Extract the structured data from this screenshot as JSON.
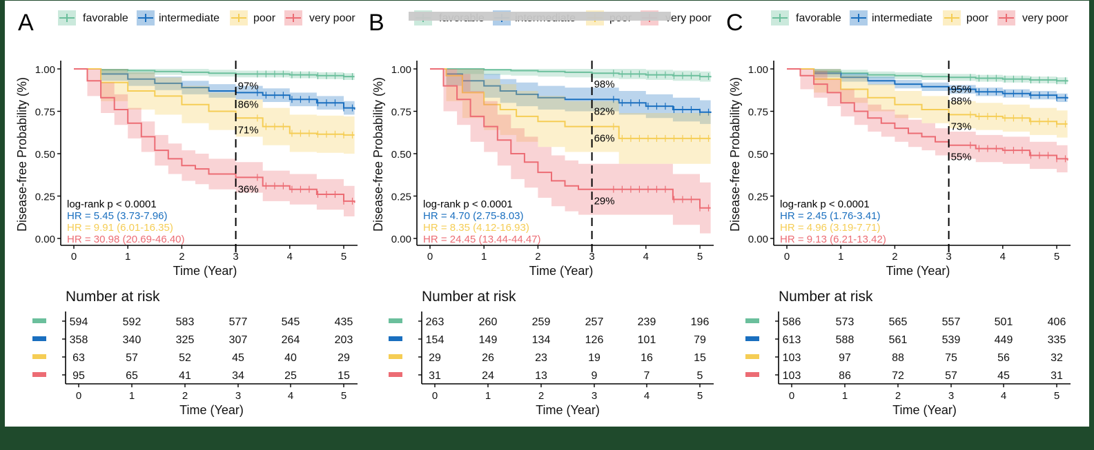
{
  "colors": {
    "favorable": "#6bbf9c",
    "intermediate": "#1a6fbf",
    "poor": "#f5cd55",
    "very_poor": "#ec6c74",
    "axis": "#000000",
    "banner": "#c9c9c9"
  },
  "chart_data": [
    {
      "panel": "A",
      "type": "line",
      "subtype": "kaplan-meier",
      "xlabel": "Time (Year)",
      "ylabel": "Disease-free Probability (%)",
      "xlim": [
        0,
        5.2
      ],
      "ylim": [
        0,
        1
      ],
      "xticks": [
        "0",
        "1",
        "2",
        "3",
        "4",
        "5"
      ],
      "yticks": [
        "0.00",
        "0.25",
        "0.50",
        "0.75",
        "1.00"
      ],
      "legend": [
        "favorable",
        "intermediate",
        "poor",
        "very poor"
      ],
      "pvalue": "log-rank p < 0.0001",
      "hr": [
        "HR = 5.45 (3.73-7.96)",
        "HR = 9.91 (6.01-16.35)",
        "HR = 30.98 (20.69-46.40)"
      ],
      "cutoff_year": 3,
      "annotations": [
        "97%",
        "86%",
        "71%",
        "36%"
      ],
      "annot_values": [
        0.97,
        0.86,
        0.71,
        0.36
      ],
      "series": [
        {
          "name": "favorable",
          "x": [
            0,
            0.5,
            1,
            1.5,
            2,
            2.5,
            3,
            3.5,
            4,
            4.5,
            5,
            5.2
          ],
          "y": [
            1,
            0.995,
            0.99,
            0.985,
            0.98,
            0.975,
            0.97,
            0.97,
            0.965,
            0.96,
            0.955,
            0.955
          ],
          "ci": 0.02
        },
        {
          "name": "intermediate",
          "x": [
            0,
            0.5,
            1,
            1.5,
            2,
            2.5,
            3,
            3.5,
            4,
            4.5,
            5,
            5.2
          ],
          "y": [
            1,
            0.97,
            0.94,
            0.915,
            0.89,
            0.87,
            0.86,
            0.845,
            0.82,
            0.8,
            0.77,
            0.76
          ],
          "ci": 0.04
        },
        {
          "name": "poor",
          "x": [
            0,
            0.5,
            1,
            1.5,
            2,
            2.5,
            3,
            3.5,
            4,
            4.5,
            5,
            5.2
          ],
          "y": [
            1,
            0.92,
            0.87,
            0.84,
            0.79,
            0.75,
            0.71,
            0.66,
            0.62,
            0.615,
            0.61,
            0.61
          ],
          "ci": 0.11
        },
        {
          "name": "very poor",
          "x": [
            0,
            0.25,
            0.5,
            0.75,
            1,
            1.25,
            1.5,
            1.75,
            2,
            2.25,
            2.5,
            3,
            3.5,
            4,
            4.5,
            5,
            5.2
          ],
          "y": [
            1,
            0.93,
            0.83,
            0.76,
            0.68,
            0.6,
            0.52,
            0.47,
            0.43,
            0.41,
            0.38,
            0.36,
            0.31,
            0.29,
            0.26,
            0.22,
            0.21
          ],
          "ci": 0.09
        }
      ],
      "risk_title": "Number at risk",
      "risk_rows": [
        [
          "594",
          "592",
          "583",
          "577",
          "545",
          "435"
        ],
        [
          "358",
          "340",
          "325",
          "307",
          "264",
          "203"
        ],
        [
          "63",
          "57",
          "52",
          "45",
          "40",
          "29"
        ],
        [
          "95",
          "65",
          "41",
          "34",
          "25",
          "15"
        ]
      ]
    },
    {
      "panel": "B",
      "type": "line",
      "subtype": "kaplan-meier",
      "xlabel": "Time (Year)",
      "ylabel": "Disease-free Probability (%)",
      "xlim": [
        0,
        5.2
      ],
      "ylim": [
        0,
        1
      ],
      "xticks": [
        "0",
        "1",
        "2",
        "3",
        "4",
        "5"
      ],
      "yticks": [
        "0.00",
        "0.25",
        "0.50",
        "0.75",
        "1.00"
      ],
      "legend": [
        "favorable",
        "intermediate",
        "poor",
        "very poor"
      ],
      "pvalue": "log-rank p < 0.0001",
      "hr": [
        "HR = 4.70 (2.75-8.03)",
        "HR = 8.35 (4.12-16.93)",
        "HR = 24.45 (13.44-44.47)"
      ],
      "cutoff_year": 3,
      "annotations": [
        "98%",
        "82%",
        "66%",
        "29%"
      ],
      "annot_values": [
        0.98,
        0.82,
        0.66,
        0.29
      ],
      "series": [
        {
          "name": "favorable",
          "x": [
            0,
            0.5,
            1,
            1.5,
            2,
            2.5,
            3,
            3.5,
            4,
            4.5,
            5,
            5.2
          ],
          "y": [
            1,
            1,
            0.995,
            0.99,
            0.985,
            0.98,
            0.975,
            0.97,
            0.965,
            0.96,
            0.955,
            0.95
          ],
          "ci": 0.03
        },
        {
          "name": "intermediate",
          "x": [
            0,
            0.3,
            0.6,
            1,
            1.3,
            1.6,
            2,
            2.5,
            3,
            3.5,
            4,
            4.5,
            5,
            5.2
          ],
          "y": [
            1,
            0.97,
            0.93,
            0.9,
            0.87,
            0.85,
            0.83,
            0.82,
            0.82,
            0.8,
            0.78,
            0.76,
            0.745,
            0.74
          ],
          "ci": 0.07
        },
        {
          "name": "poor",
          "x": [
            0,
            0.3,
            0.6,
            1,
            1.3,
            1.6,
            2,
            2.5,
            3,
            3.5,
            4,
            4.5,
            5,
            5.2
          ],
          "y": [
            1,
            0.96,
            0.86,
            0.79,
            0.76,
            0.72,
            0.69,
            0.66,
            0.66,
            0.59,
            0.59,
            0.59,
            0.59,
            0.59
          ],
          "ci": 0.15
        },
        {
          "name": "very poor",
          "x": [
            0,
            0.25,
            0.5,
            0.75,
            1,
            1.25,
            1.5,
            1.75,
            2,
            2.25,
            2.5,
            2.75,
            3,
            3.5,
            4,
            4.5,
            5,
            5.2
          ],
          "y": [
            1,
            0.9,
            0.82,
            0.72,
            0.66,
            0.58,
            0.5,
            0.45,
            0.39,
            0.34,
            0.31,
            0.29,
            0.29,
            0.29,
            0.29,
            0.23,
            0.18,
            0.18
          ],
          "ci": 0.15
        }
      ],
      "risk_title": "Number at risk",
      "risk_rows": [
        [
          "263",
          "260",
          "259",
          "257",
          "239",
          "196"
        ],
        [
          "154",
          "149",
          "134",
          "126",
          "101",
          "79"
        ],
        [
          "29",
          "26",
          "23",
          "19",
          "16",
          "15"
        ],
        [
          "31",
          "24",
          "13",
          "9",
          "7",
          "5"
        ]
      ]
    },
    {
      "panel": "C",
      "type": "line",
      "subtype": "kaplan-meier",
      "xlabel": "Time (Year)",
      "ylabel": "Disease-free Probability (%)",
      "xlim": [
        0,
        5.2
      ],
      "ylim": [
        0,
        1
      ],
      "xticks": [
        "0",
        "1",
        "2",
        "3",
        "4",
        "5"
      ],
      "yticks": [
        "0.00",
        "0.25",
        "0.50",
        "0.75",
        "1.00"
      ],
      "legend": [
        "favorable",
        "intermediate",
        "poor",
        "very poor"
      ],
      "pvalue": "log-rank p < 0.0001",
      "hr": [
        "HR = 2.45 (1.76-3.41)",
        "HR = 4.96 (3.19-7.71)",
        "HR = 9.13 (6.21-13.42)"
      ],
      "cutoff_year": 3,
      "annotations": [
        "95%",
        "88%",
        "73%",
        "55%"
      ],
      "annot_values": [
        0.95,
        0.88,
        0.73,
        0.55
      ],
      "series": [
        {
          "name": "favorable",
          "x": [
            0,
            0.5,
            1,
            1.5,
            2,
            2.5,
            3,
            3.5,
            4,
            4.5,
            5,
            5.2
          ],
          "y": [
            1,
            0.985,
            0.975,
            0.965,
            0.96,
            0.955,
            0.95,
            0.945,
            0.94,
            0.935,
            0.93,
            0.925
          ],
          "ci": 0.02
        },
        {
          "name": "intermediate",
          "x": [
            0,
            0.5,
            1,
            1.5,
            2,
            2.5,
            3,
            3.5,
            4,
            4.5,
            5,
            5.2
          ],
          "y": [
            1,
            0.975,
            0.95,
            0.93,
            0.91,
            0.895,
            0.88,
            0.865,
            0.855,
            0.845,
            0.83,
            0.825
          ],
          "ci": 0.025
        },
        {
          "name": "poor",
          "x": [
            0,
            0.5,
            1,
            1.5,
            2,
            2.5,
            3,
            3.5,
            4,
            4.5,
            5,
            5.2
          ],
          "y": [
            1,
            0.94,
            0.88,
            0.83,
            0.79,
            0.76,
            0.73,
            0.72,
            0.71,
            0.69,
            0.675,
            0.675
          ],
          "ci": 0.08
        },
        {
          "name": "very poor",
          "x": [
            0,
            0.25,
            0.5,
            0.75,
            1,
            1.25,
            1.5,
            1.75,
            2,
            2.25,
            2.5,
            2.75,
            3,
            3.5,
            4,
            4.5,
            5,
            5.2
          ],
          "y": [
            1,
            0.96,
            0.91,
            0.86,
            0.8,
            0.75,
            0.71,
            0.68,
            0.65,
            0.62,
            0.6,
            0.57,
            0.55,
            0.53,
            0.52,
            0.49,
            0.47,
            0.46
          ],
          "ci": 0.08
        }
      ],
      "risk_title": "Number at risk",
      "risk_rows": [
        [
          "586",
          "573",
          "565",
          "557",
          "501",
          "406"
        ],
        [
          "613",
          "588",
          "561",
          "539",
          "449",
          "335"
        ],
        [
          "103",
          "97",
          "88",
          "75",
          "56",
          "32"
        ],
        [
          "103",
          "86",
          "72",
          "57",
          "45",
          "31"
        ]
      ]
    }
  ]
}
